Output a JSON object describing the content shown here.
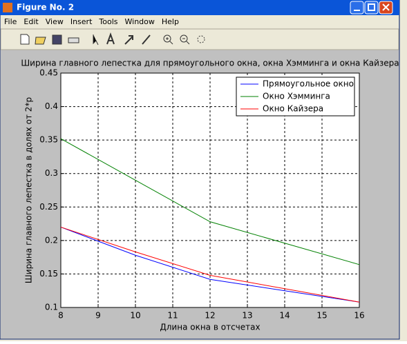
{
  "window": {
    "title": "Figure No. 2",
    "menu": [
      "File",
      "Edit",
      "View",
      "Insert",
      "Tools",
      "Window",
      "Help"
    ]
  },
  "chart_data": {
    "type": "line",
    "title": "Ширина главного лепестка для прямоугольного окна, окна Хэмминга и окна Кайзера",
    "x_label": "Длина окна в отсчетах",
    "y_label": "Ширина главного лепестка в долях от 2*p",
    "x": [
      8,
      10,
      12,
      14,
      16
    ],
    "series": [
      {
        "name": "Прямоугольное окно",
        "color": "#0000ff",
        "values": [
          0.22,
          0.178,
          0.142,
          0.125,
          0.108
        ]
      },
      {
        "name": "Окно Хэмминга",
        "color": "#008000",
        "values": [
          0.352,
          0.29,
          0.228,
          0.196,
          0.164
        ]
      },
      {
        "name": "Окно Кайзера",
        "color": "#ff0000",
        "values": [
          0.22,
          0.183,
          0.148,
          0.128,
          0.108
        ]
      }
    ],
    "xlim": [
      8,
      16
    ],
    "xticks": [
      8,
      9,
      10,
      11,
      12,
      13,
      14,
      15,
      16
    ],
    "ylim": [
      0.1,
      0.45
    ],
    "yticks": [
      0.1,
      0.15,
      0.2,
      0.25,
      0.3,
      0.35,
      0.4,
      0.45
    ],
    "grid": true,
    "legend": "top-right"
  }
}
